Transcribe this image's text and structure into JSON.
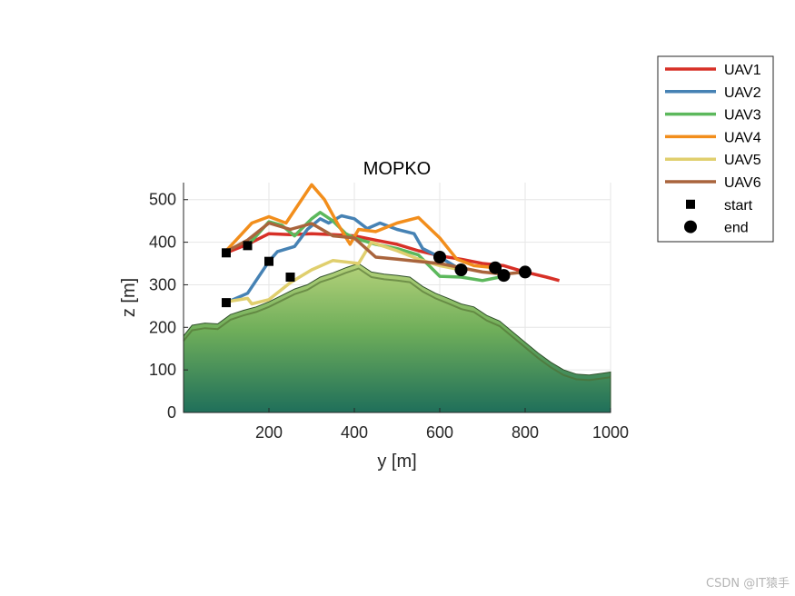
{
  "chart_data": {
    "type": "line",
    "title": "MOPKO",
    "xlabel": "y [m]",
    "ylabel": "z [m]",
    "xlim": [
      0,
      1000
    ],
    "ylim": [
      0,
      540
    ],
    "xticks": [
      200,
      400,
      600,
      800,
      1000
    ],
    "yticks": [
      0,
      100,
      200,
      300,
      400,
      500
    ],
    "grid": true,
    "legend_position": "top-right, outside the axes",
    "series": [
      {
        "name": "UAV1",
        "color": "#d73027",
        "x": [
          100,
          150,
          200,
          250,
          300,
          350,
          400,
          450,
          500,
          550,
          600,
          650,
          700,
          750,
          800,
          850,
          880
        ],
        "y": [
          375,
          395,
          420,
          418,
          420,
          418,
          415,
          405,
          395,
          380,
          368,
          360,
          350,
          345,
          330,
          318,
          310
        ]
      },
      {
        "name": "UAV2",
        "color": "#4682b4",
        "x": [
          100,
          150,
          200,
          220,
          260,
          290,
          320,
          340,
          370,
          400,
          430,
          460,
          500,
          540,
          560,
          600,
          650
        ],
        "y": [
          258,
          280,
          355,
          378,
          390,
          430,
          455,
          445,
          462,
          455,
          432,
          445,
          430,
          420,
          385,
          365,
          335
        ]
      },
      {
        "name": "UAV3",
        "color": "#5cb85c",
        "x": [
          150,
          200,
          230,
          260,
          300,
          320,
          350,
          380,
          400,
          450,
          500,
          550,
          600,
          650,
          700,
          750
        ],
        "y": [
          392,
          448,
          440,
          415,
          455,
          470,
          450,
          420,
          410,
          395,
          385,
          370,
          320,
          318,
          310,
          320
        ]
      },
      {
        "name": "UAV4",
        "color": "#f28e1c",
        "x": [
          100,
          160,
          200,
          240,
          270,
          300,
          330,
          360,
          390,
          410,
          450,
          500,
          550,
          600,
          640,
          680,
          730
        ],
        "y": [
          380,
          445,
          460,
          445,
          490,
          535,
          500,
          445,
          395,
          430,
          425,
          445,
          458,
          410,
          360,
          345,
          340
        ]
      },
      {
        "name": "UAV5",
        "color": "#e0cf6e",
        "x": [
          100,
          150,
          160,
          200,
          250,
          300,
          350,
          410,
          440,
          500,
          550,
          600,
          650
        ],
        "y": [
          260,
          268,
          255,
          265,
          305,
          335,
          357,
          350,
          400,
          380,
          360,
          345,
          335
        ]
      },
      {
        "name": "UAV6",
        "color": "#a9643c",
        "x": [
          100,
          150,
          200,
          250,
          300,
          350,
          400,
          450,
          500,
          550,
          600,
          650,
          700,
          750,
          800
        ],
        "y": [
          378,
          405,
          445,
          430,
          444,
          415,
          410,
          365,
          360,
          355,
          350,
          340,
          330,
          325,
          330
        ]
      }
    ],
    "start_markers": {
      "name": "start",
      "symbol": "square",
      "points": [
        [
          100,
          375
        ],
        [
          150,
          392
        ],
        [
          200,
          355
        ],
        [
          100,
          258
        ],
        [
          250,
          318
        ]
      ]
    },
    "end_markers": {
      "name": "end",
      "symbol": "circle",
      "points": [
        [
          600,
          365
        ],
        [
          650,
          335
        ],
        [
          730,
          340
        ],
        [
          750,
          322
        ],
        [
          800,
          330
        ]
      ]
    },
    "terrain_profile": {
      "x": [
        0,
        20,
        50,
        80,
        110,
        140,
        170,
        200,
        230,
        260,
        290,
        320,
        350,
        380,
        410,
        440,
        470,
        500,
        530,
        560,
        590,
        620,
        650,
        680,
        710,
        740,
        770,
        800,
        830,
        860,
        890,
        920,
        950,
        980,
        1000
      ],
      "y": [
        180,
        205,
        210,
        208,
        230,
        240,
        248,
        260,
        275,
        290,
        300,
        318,
        328,
        340,
        350,
        330,
        325,
        322,
        318,
        296,
        280,
        268,
        255,
        248,
        228,
        215,
        190,
        165,
        140,
        118,
        100,
        90,
        88,
        92,
        95
      ]
    },
    "watermark": "CSDN @IT猿手"
  }
}
